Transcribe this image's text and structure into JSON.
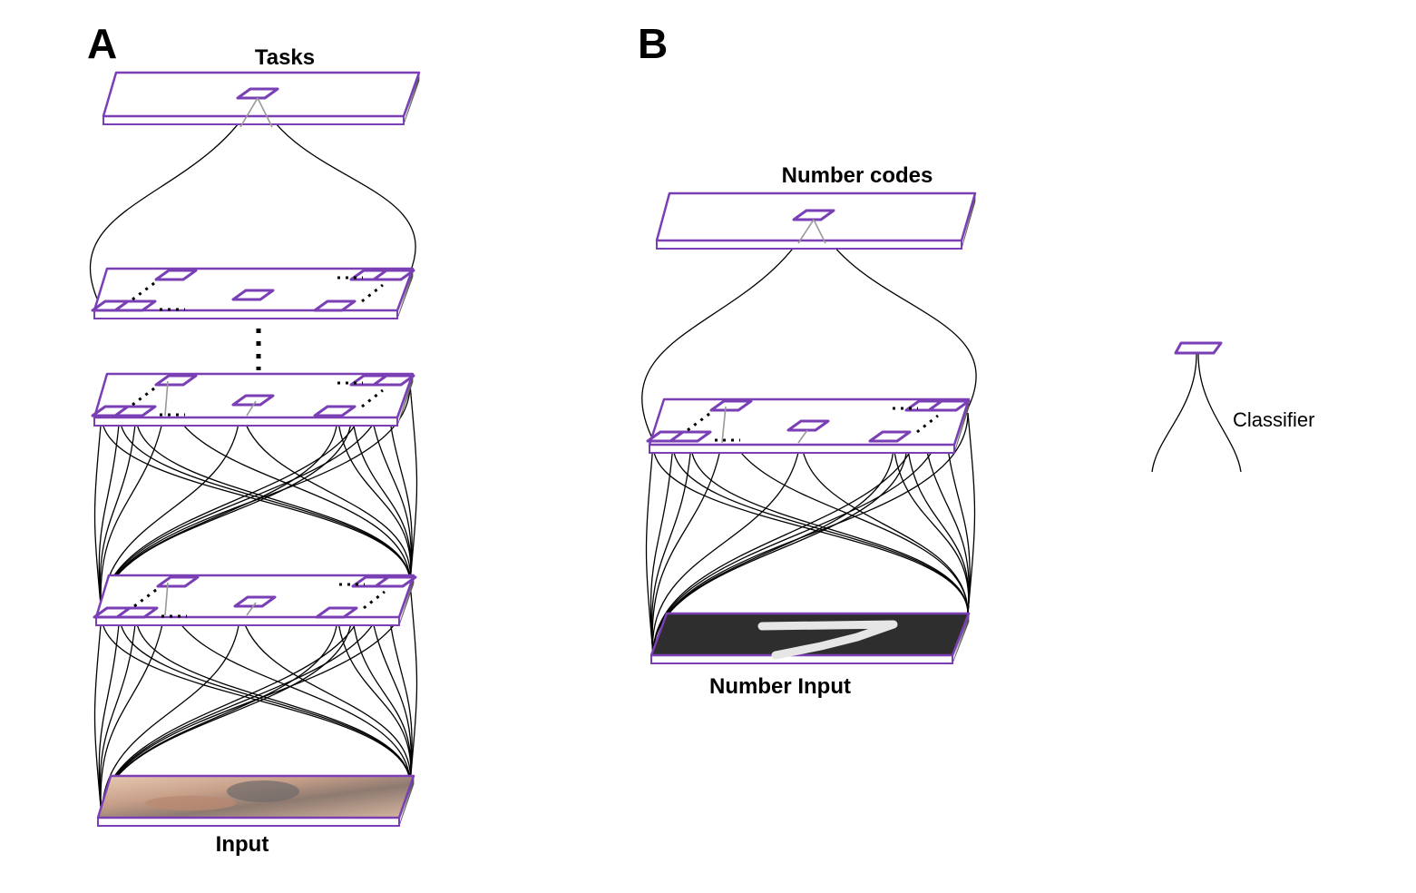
{
  "panels": {
    "a": {
      "letter": "A",
      "top_label": "Tasks",
      "bottom_label": "Input"
    },
    "b": {
      "letter": "B",
      "top_label": "Number codes",
      "bottom_label": "Number Input"
    }
  },
  "legend": {
    "label": "Classifier",
    "icon": "classifier-icon"
  },
  "colors": {
    "unit_outline": "#7a3fb5",
    "connection": "#000000",
    "stem": "#999999",
    "digit_background": "#2e2e2e"
  },
  "input_images": {
    "a": "photo-of-kitchen-scene",
    "b": "handwritten-digit-7"
  }
}
